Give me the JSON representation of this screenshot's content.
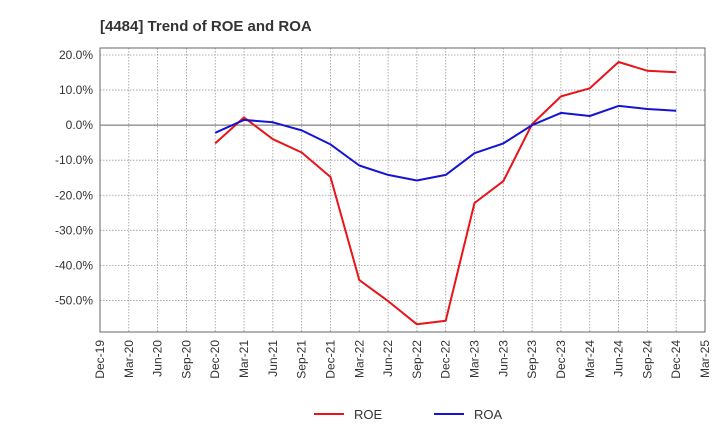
{
  "chart_data": {
    "type": "line",
    "title": "[4484]  Trend of ROE and ROA",
    "xlabel": "",
    "ylabel": "",
    "x_ticks": [
      "Dec-19",
      "Mar-20",
      "Jun-20",
      "Sep-20",
      "Dec-20",
      "Mar-21",
      "Jun-21",
      "Sep-21",
      "Dec-21",
      "Mar-22",
      "Jun-22",
      "Sep-22",
      "Dec-22",
      "Mar-23",
      "Jun-23",
      "Sep-23",
      "Dec-23",
      "Mar-24",
      "Jun-24",
      "Sep-24",
      "Dec-24",
      "Mar-25"
    ],
    "y_ticks": [
      20,
      10,
      0,
      -10,
      -20,
      -30,
      -40,
      -50
    ],
    "y_tick_labels": [
      "20.0%",
      "10.0%",
      "0.0%",
      "-10.0%",
      "-20.0%",
      "-30.0%",
      "-40.0%",
      "-50.0%"
    ],
    "ylim": [
      -59,
      22
    ],
    "grid": true,
    "legend_position": "bottom",
    "series": [
      {
        "name": "ROE",
        "color": "#e8141a",
        "x": [
          "Dec-20",
          "Mar-21",
          "Jun-21",
          "Sep-21",
          "Dec-21",
          "Mar-22",
          "Jun-22",
          "Sep-22",
          "Dec-22",
          "Mar-23",
          "Jun-23",
          "Sep-23",
          "Dec-23",
          "Mar-24",
          "Jun-24",
          "Sep-24",
          "Dec-24"
        ],
        "values": [
          -5.2,
          2.2,
          -4.0,
          -7.8,
          -14.8,
          -44.2,
          -50.2,
          -56.8,
          -55.8,
          -22.2,
          -16.0,
          0.3,
          8.2,
          10.5,
          18.0,
          15.5,
          15.1
        ]
      },
      {
        "name": "ROA",
        "color": "#1414d2",
        "x": [
          "Dec-20",
          "Mar-21",
          "Jun-21",
          "Sep-21",
          "Dec-21",
          "Mar-22",
          "Jun-22",
          "Sep-22",
          "Dec-22",
          "Mar-23",
          "Jun-23",
          "Sep-23",
          "Dec-23",
          "Mar-24",
          "Jun-24",
          "Sep-24",
          "Dec-24"
        ],
        "values": [
          -2.2,
          1.5,
          0.8,
          -1.5,
          -5.5,
          -11.5,
          -14.2,
          -15.8,
          -14.2,
          -8.0,
          -5.2,
          0.0,
          3.5,
          2.6,
          5.5,
          4.6,
          4.1
        ]
      }
    ]
  }
}
